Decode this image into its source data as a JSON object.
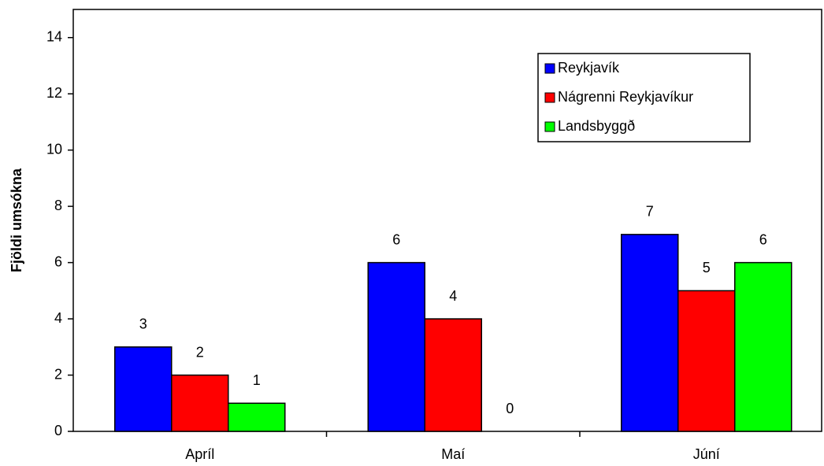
{
  "chart_data": {
    "type": "bar",
    "y_label": "Fjöldi umsókna",
    "categories": [
      "Apríl",
      "Maí",
      "Júní"
    ],
    "series": [
      {
        "name": "Reykjavík",
        "color": "#0000ff",
        "values": [
          3,
          6,
          7
        ]
      },
      {
        "name": "Nágrenni Reykjavíkur",
        "color": "#ff0000",
        "values": [
          2,
          4,
          5
        ]
      },
      {
        "name": "Landsbyggð",
        "color": "#00ff00",
        "values": [
          1,
          0,
          6
        ]
      }
    ],
    "ylim": [
      0,
      15
    ],
    "yticks": [
      0,
      2,
      4,
      6,
      8,
      10,
      12,
      14
    ],
    "grid": false,
    "legend": "upper right"
  }
}
